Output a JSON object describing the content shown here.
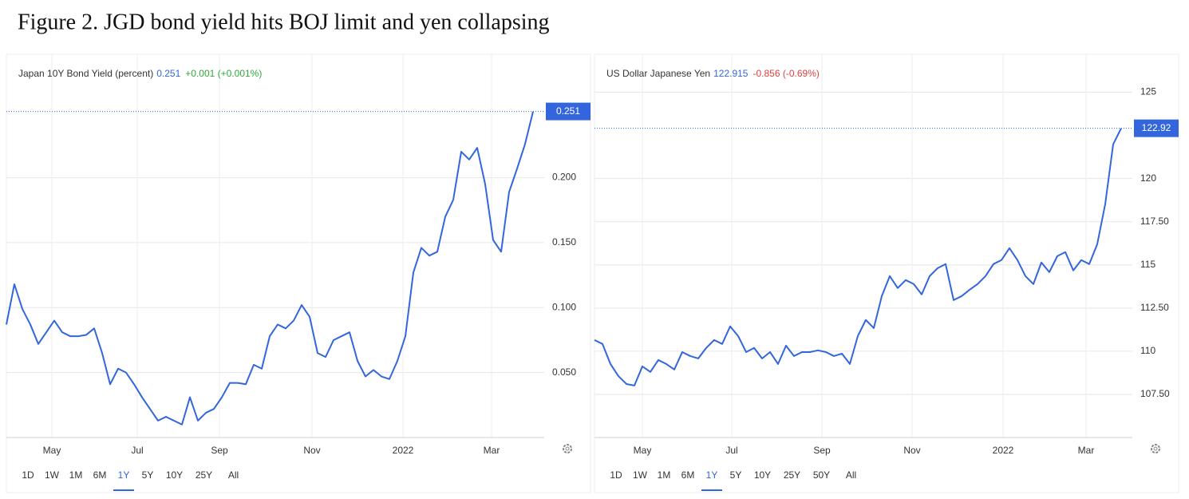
{
  "title": "Figure 2. JGD bond yield hits BOJ limit and yen collapsing",
  "chart_data": [
    {
      "type": "line",
      "color": "#3366dd",
      "grid": true,
      "series": [
        {
          "name": "Japan 10Y Bond Yield (percent)",
          "color": "#3366dd",
          "values": [
            0.087,
            0.118,
            0.099,
            0.087,
            0.072,
            0.081,
            0.09,
            0.081,
            0.078,
            0.078,
            0.079,
            0.084,
            0.065,
            0.041,
            0.053,
            0.05,
            0.041,
            0.031,
            0.022,
            0.013,
            0.016,
            0.013,
            0.01,
            0.031,
            0.013,
            0.019,
            0.022,
            0.031,
            0.042,
            0.042,
            0.041,
            0.056,
            0.053,
            0.078,
            0.087,
            0.084,
            0.09,
            0.102,
            0.093,
            0.065,
            0.062,
            0.075,
            0.078,
            0.081,
            0.059,
            0.047,
            0.052,
            0.047,
            0.045,
            0.059,
            0.078,
            0.127,
            0.146,
            0.14,
            0.143,
            0.17,
            0.183,
            0.22,
            0.214,
            0.223,
            0.195,
            0.152,
            0.143,
            0.189,
            0.207,
            0.226,
            0.251
          ]
        }
      ],
      "last": 0.251,
      "change": "+0.001 (+0.001%)",
      "xlim": [
        0,
        67.4
      ],
      "xticks": [
        {
          "value": 5.7,
          "label": "May"
        },
        {
          "value": 16.4,
          "label": "Jul"
        },
        {
          "value": 26.7,
          "label": "Sep"
        },
        {
          "value": 38.3,
          "label": "Nov"
        },
        {
          "value": 49.7,
          "label": "2022"
        },
        {
          "value": 60.8,
          "label": "Mar"
        }
      ],
      "ylim": [
        0,
        0.295
      ],
      "yticks": [
        {
          "value": 0.05,
          "label": "0.050"
        },
        {
          "value": 0.1,
          "label": "0.100"
        },
        {
          "value": 0.15,
          "label": "0.150"
        },
        {
          "value": 0.2,
          "label": "0.200"
        }
      ],
      "periods": [
        "1D",
        "1W",
        "1M",
        "6M",
        "1Y",
        "5Y",
        "10Y",
        "25Y",
        "All"
      ],
      "selected": 4
    },
    {
      "type": "line",
      "color": "#3366dd",
      "grid": true,
      "series": [
        {
          "name": "US Dollar Japanese Yen",
          "color": "#3366dd",
          "values": [
            110.65,
            110.42,
            109.26,
            108.56,
            108.1,
            108.01,
            109.12,
            108.8,
            109.49,
            109.26,
            108.94,
            109.95,
            109.72,
            109.58,
            110.19,
            110.65,
            110.42,
            111.44,
            110.88,
            109.95,
            110.19,
            109.58,
            109.95,
            109.26,
            110.32,
            109.72,
            109.95,
            109.95,
            110.05,
            109.95,
            109.72,
            109.86,
            109.26,
            110.88,
            111.81,
            111.34,
            113.19,
            114.35,
            113.66,
            114.12,
            113.89,
            113.29,
            114.35,
            114.81,
            115.05,
            112.96,
            113.19,
            113.56,
            113.89,
            114.35,
            115.05,
            115.28,
            115.97,
            115.28,
            114.35,
            113.89,
            115.14,
            114.58,
            115.51,
            115.74,
            114.68,
            115.28,
            115.05,
            116.2,
            118.52,
            121.99,
            122.915
          ]
        }
      ],
      "last": 122.915,
      "tag_label": "122.92",
      "change": "-0.856 (-0.69%)",
      "xlim": [
        0,
        67.4
      ],
      "xticks": [
        {
          "value": 6,
          "label": "May"
        },
        {
          "value": 17.2,
          "label": "Jul"
        },
        {
          "value": 28.5,
          "label": "Sep"
        },
        {
          "value": 39.8,
          "label": "Nov"
        },
        {
          "value": 51.2,
          "label": "2022"
        },
        {
          "value": 61.6,
          "label": "Mar"
        }
      ],
      "ylim": [
        105,
        127.2
      ],
      "yticks": [
        {
          "value": 107.5,
          "label": "107.50"
        },
        110,
        {
          "value": 112.5,
          "label": "112.50"
        },
        115,
        {
          "value": 117.5,
          "label": "117.50"
        },
        120,
        125
      ],
      "periods": [
        "1D",
        "1W",
        "1M",
        "6M",
        "1Y",
        "5Y",
        "10Y",
        "25Y",
        "50Y",
        "All"
      ],
      "selected": 4
    }
  ]
}
